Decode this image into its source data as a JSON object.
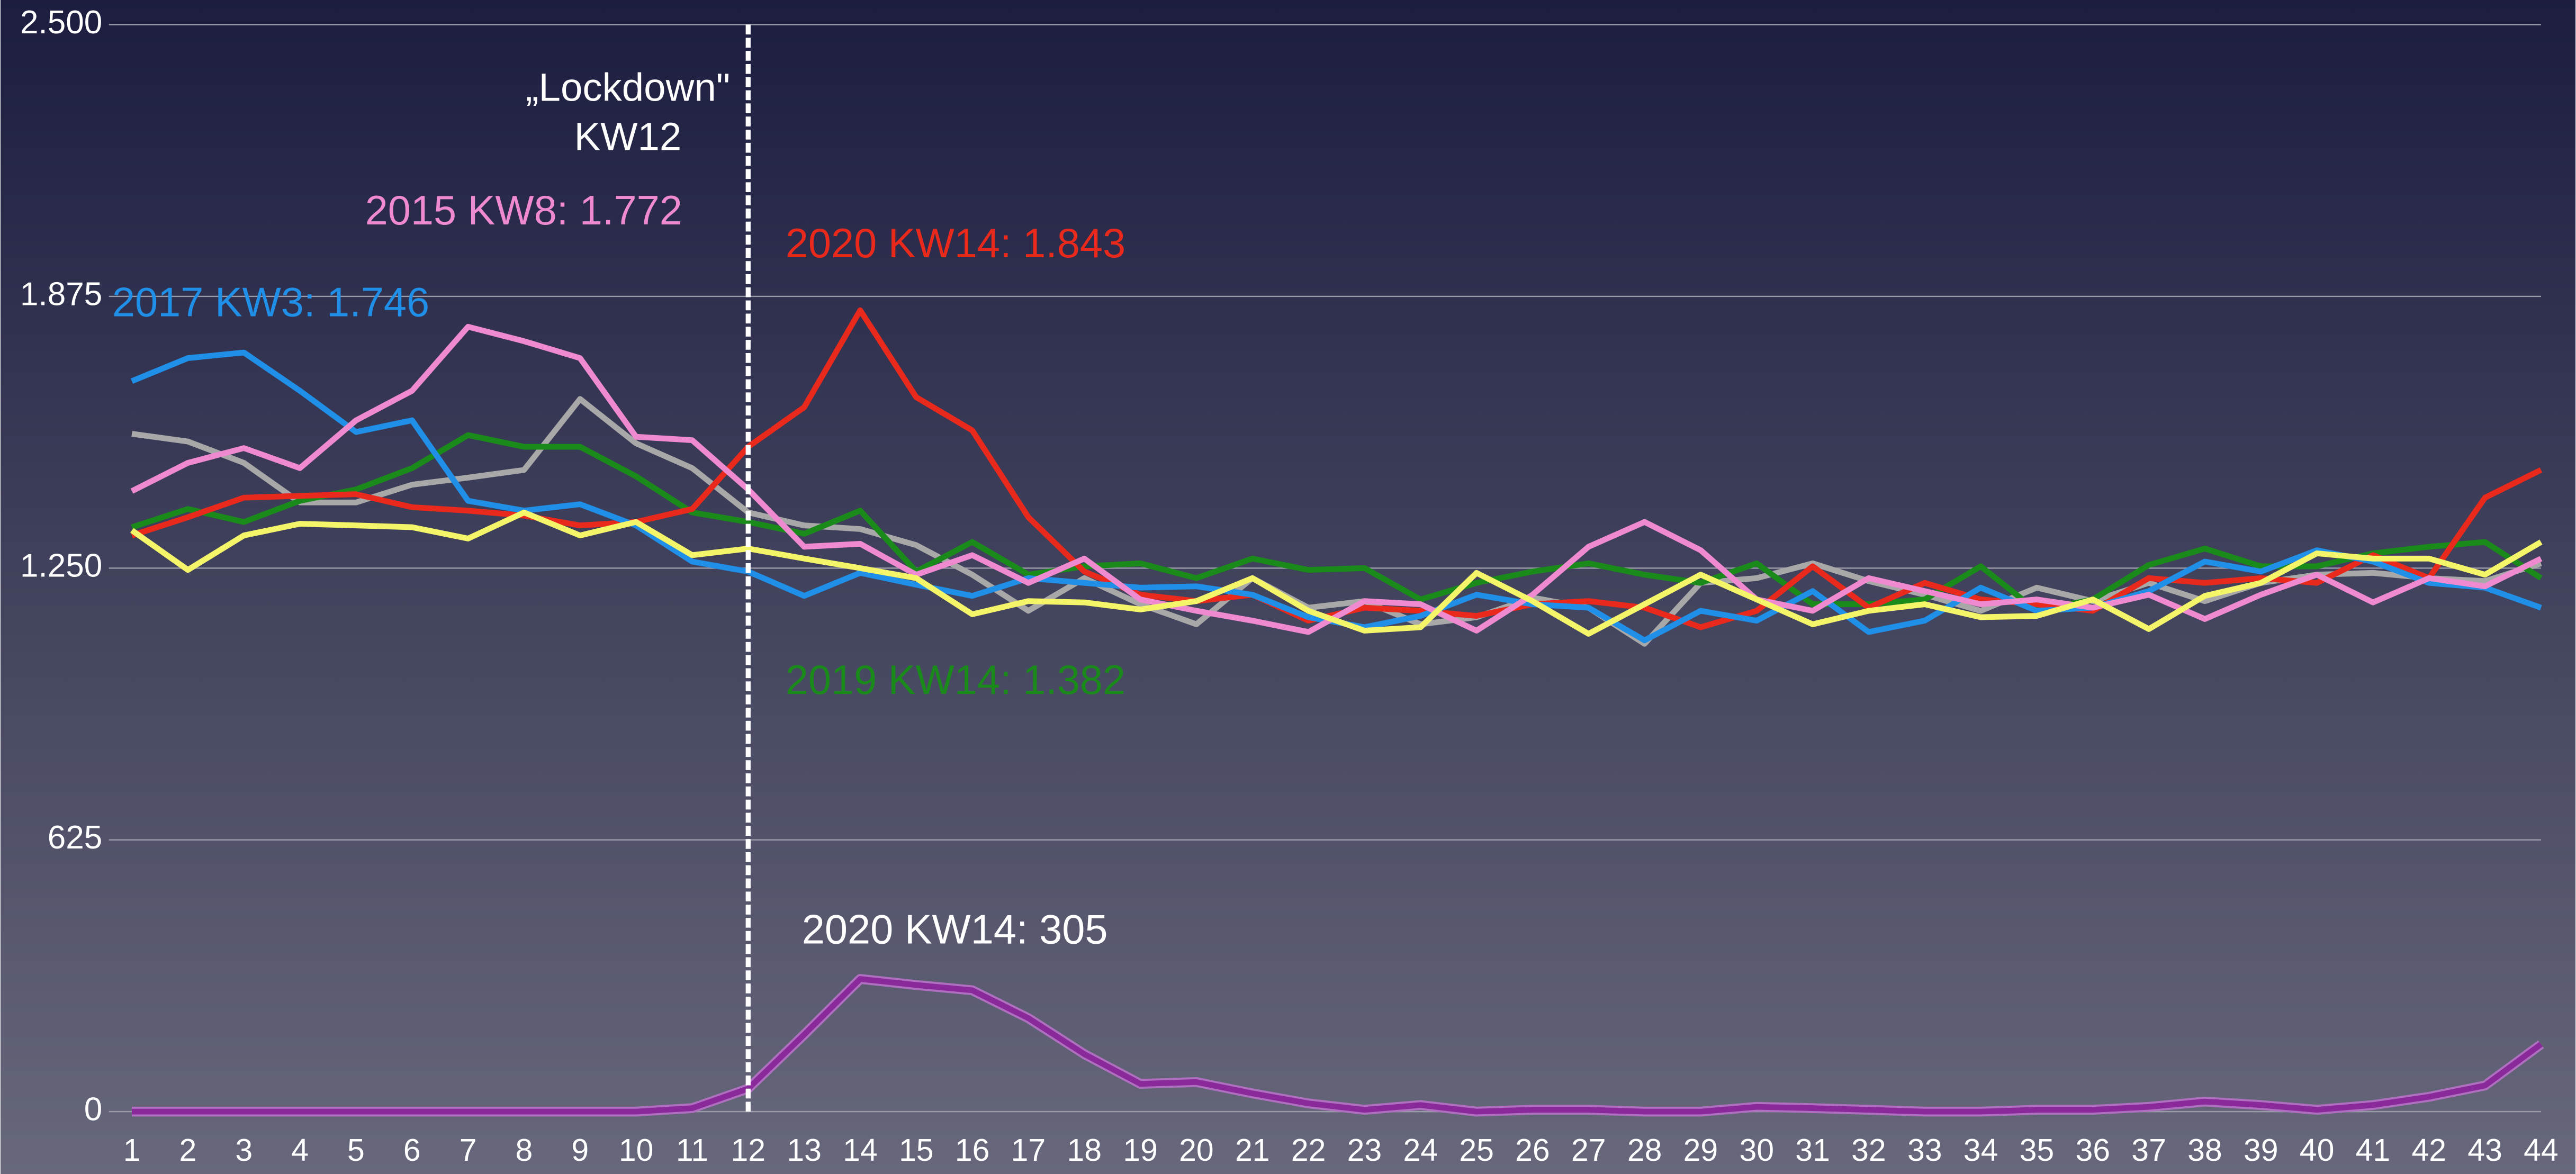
{
  "chart_data": {
    "type": "line",
    "categories": [
      "1",
      "2",
      "3",
      "4",
      "5",
      "6",
      "7",
      "8",
      "9",
      "10",
      "11",
      "12",
      "13",
      "14",
      "15",
      "16",
      "17",
      "18",
      "19",
      "20",
      "21",
      "22",
      "23",
      "24",
      "25",
      "26",
      "27",
      "28",
      "29",
      "30",
      "31",
      "32",
      "33",
      "34",
      "35",
      "36",
      "37",
      "38",
      "39",
      "40",
      "41",
      "42",
      "43",
      "44"
    ],
    "ylim": [
      0,
      2500
    ],
    "yticks": [
      0,
      {
        "value": 625,
        "label": "625"
      },
      {
        "value": 1250,
        "label": "1.250"
      },
      {
        "value": 1875,
        "label": "1.875"
      },
      {
        "value": 2500,
        "label": "2.500"
      }
    ],
    "grid": true,
    "vline": {
      "category": 11,
      "color": "#ffffff",
      "text": [
        "„Lockdown\"",
        "KW12"
      ]
    },
    "annotations": [
      {
        "text": "2015 KW8: 1.772",
        "color": "#f08ad0"
      },
      {
        "text": "2017 KW3: 1.746",
        "color": "#1f8fe8"
      },
      {
        "text": "2020 KW14: 1.843",
        "color": "#e8291c"
      },
      {
        "text": "2019 KW14: 1.382",
        "color": "#1a8a1a"
      },
      {
        "text": "2020 KW14: 305",
        "color": "#ffffff"
      }
    ],
    "series": [
      {
        "color": "#a8a8a8",
        "values": [
          1559,
          1541,
          1492,
          1401,
          1401,
          1442,
          1458,
          1476,
          1639,
          1537,
          1480,
          1378,
          1348,
          1340,
          1303,
          1235,
          1152,
          1227,
          1167,
          1121,
          1227,
          1159,
          1174,
          1121,
          1137,
          1182,
          1159,
          1076,
          1216,
          1227,
          1261,
          1220,
          1189,
          1152,
          1205,
          1174,
          1216,
          1174,
          1216,
          1235,
          1239,
          1227,
          1220,
          1261
        ]
      },
      {
        "color": "#1a8a1a",
        "values": [
          1344,
          1386,
          1356,
          1405,
          1431,
          1480,
          1556,
          1529,
          1529,
          1461,
          1378,
          1356,
          1329,
          1382,
          1242,
          1310,
          1235,
          1254,
          1261,
          1227,
          1272,
          1246,
          1250,
          1178,
          1216,
          1242,
          1261,
          1235,
          1216,
          1261,
          1167,
          1167,
          1178,
          1254,
          1152,
          1178,
          1257,
          1295,
          1254,
          1254,
          1284,
          1299,
          1310,
          1227
        ]
      },
      {
        "color": "#e8291c",
        "values": [
          1325,
          1367,
          1412,
          1416,
          1420,
          1390,
          1382,
          1371,
          1348,
          1356,
          1386,
          1529,
          1620,
          1843,
          1643,
          1567,
          1367,
          1242,
          1189,
          1174,
          1189,
          1129,
          1159,
          1152,
          1140,
          1167,
          1174,
          1159,
          1114,
          1152,
          1254,
          1159,
          1216,
          1178,
          1167,
          1152,
          1227,
          1216,
          1227,
          1216,
          1280,
          1227,
          1412,
          1476
        ]
      },
      {
        "color": "#1f8fe8",
        "values": [
          1680,
          1733,
          1746,
          1658,
          1563,
          1590,
          1405,
          1382,
          1397,
          1348,
          1265,
          1242,
          1186,
          1239,
          1212,
          1186,
          1227,
          1216,
          1205,
          1208,
          1189,
          1137,
          1114,
          1140,
          1189,
          1167,
          1159,
          1084,
          1152,
          1129,
          1197,
          1103,
          1129,
          1205,
          1152,
          1159,
          1197,
          1265,
          1242,
          1291,
          1265,
          1216,
          1205,
          1159
        ]
      },
      {
        "color": "#f08ad0",
        "values": [
          1427,
          1492,
          1526,
          1480,
          1590,
          1658,
          1805,
          1772,
          1733,
          1552,
          1544,
          1431,
          1299,
          1306,
          1235,
          1280,
          1216,
          1272,
          1178,
          1152,
          1129,
          1103,
          1174,
          1167,
          1106,
          1189,
          1299,
          1356,
          1291,
          1178,
          1152,
          1227,
          1197,
          1167,
          1178,
          1159,
          1189,
          1133,
          1189,
          1235,
          1171,
          1227,
          1208,
          1272
        ]
      },
      {
        "color": "#f5f56a",
        "values": [
          1337,
          1246,
          1325,
          1352,
          1348,
          1344,
          1318,
          1378,
          1325,
          1356,
          1280,
          1295,
          1272,
          1250,
          1227,
          1144,
          1174,
          1171,
          1155,
          1174,
          1227,
          1152,
          1106,
          1114,
          1239,
          1174,
          1099,
          1167,
          1235,
          1178,
          1121,
          1152,
          1167,
          1137,
          1140,
          1178,
          1110,
          1186,
          1216,
          1284,
          1272,
          1272,
          1235,
          1310
        ]
      },
      {
        "color": "#8a2a9a",
        "values": [
          0,
          0,
          0,
          0,
          0,
          0,
          0,
          0,
          0,
          0,
          8,
          53,
          177,
          305,
          291,
          279,
          215,
          132,
          64,
          68,
          42,
          19,
          4,
          15,
          0,
          4,
          4,
          0,
          0,
          11,
          8,
          4,
          0,
          0,
          4,
          4,
          11,
          23,
          15,
          4,
          15,
          34,
          60,
          155
        ]
      }
    ]
  }
}
